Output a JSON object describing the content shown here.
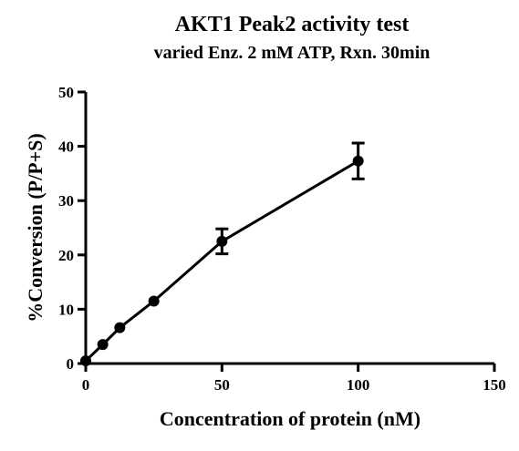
{
  "chart_data": {
    "type": "line",
    "title": "AKT1 Peak2 activity test",
    "subtitle": "varied Enz. 2 mM ATP, Rxn. 30min",
    "xlabel": "Concentration of protein (nM)",
    "ylabel": "%Conversion (P/P+S)",
    "xlim": [
      0,
      150
    ],
    "ylim": [
      0,
      50
    ],
    "xticks": [
      0,
      50,
      100,
      150
    ],
    "yticks": [
      0,
      10,
      20,
      30,
      40,
      50
    ],
    "xtick_labels": [
      "0",
      "50",
      "100",
      "150"
    ],
    "ytick_labels": [
      "0",
      "10",
      "20",
      "30",
      "40",
      "50"
    ],
    "grid": false,
    "legend": "none",
    "series": [
      {
        "x": [
          0,
          6.25,
          12.5,
          25,
          50,
          100
        ],
        "y": [
          0.5,
          3.5,
          6.6,
          11.5,
          22.5,
          37.3
        ],
        "error": [
          0,
          0,
          0,
          0,
          2.3,
          3.3
        ],
        "color": "#000000"
      }
    ]
  }
}
